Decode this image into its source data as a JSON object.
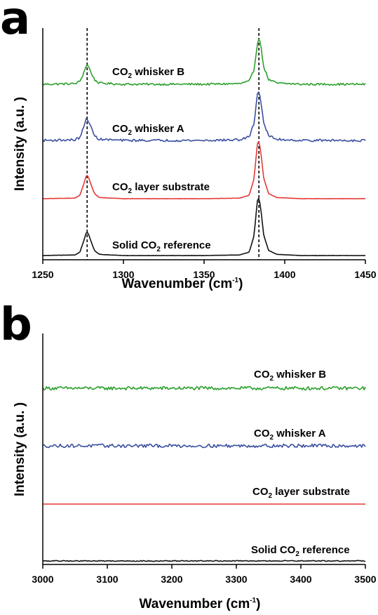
{
  "chart_data": [
    {
      "panel": "a",
      "type": "line",
      "xlabel": "Wavenumber (cm-1)",
      "ylabel": "Intensity (a.u. )",
      "xlim": [
        1250,
        1450
      ],
      "xticks": [
        1250,
        1300,
        1350,
        1400,
        1450
      ],
      "grid": false,
      "reference_lines_x": [
        1277.5,
        1384
      ],
      "series": [
        {
          "name": "CO2 whisker B",
          "color": "#2ca02c",
          "noise": 0.018,
          "x": [
            1250,
            1270,
            1273,
            1275,
            1277,
            1278,
            1280,
            1282,
            1285,
            1300,
            1350,
            1372,
            1378,
            1381,
            1383,
            1384,
            1385,
            1387,
            1390,
            1395,
            1410,
            1450
          ],
          "y": [
            0,
            0.01,
            0.05,
            0.17,
            0.33,
            0.33,
            0.2,
            0.08,
            0.02,
            0,
            0,
            0.01,
            0.05,
            0.25,
            0.7,
            0.82,
            0.7,
            0.3,
            0.08,
            0.02,
            0,
            0
          ]
        },
        {
          "name": "CO2 whisker A",
          "color": "#3a4fa0",
          "noise": 0.02,
          "x": [
            1250,
            1270,
            1273,
            1275,
            1277,
            1278,
            1280,
            1282,
            1285,
            1300,
            1350,
            1372,
            1378,
            1381,
            1383,
            1384,
            1385,
            1387,
            1390,
            1395,
            1410,
            1450
          ],
          "y": [
            0,
            0.01,
            0.05,
            0.2,
            0.37,
            0.37,
            0.22,
            0.08,
            0.02,
            0,
            0,
            0.01,
            0.06,
            0.3,
            0.8,
            0.86,
            0.72,
            0.3,
            0.08,
            0.02,
            0,
            0
          ]
        },
        {
          "name": "CO2 layer substrate",
          "color": "#e53935",
          "noise": 0.002,
          "x": [
            1250,
            1270,
            1273,
            1275,
            1277,
            1278,
            1280,
            1282,
            1285,
            1300,
            1350,
            1372,
            1378,
            1381,
            1383,
            1384,
            1385,
            1387,
            1390,
            1395,
            1410,
            1450
          ],
          "y": [
            0,
            0.01,
            0.06,
            0.22,
            0.4,
            0.4,
            0.24,
            0.09,
            0.02,
            0,
            0,
            0.01,
            0.06,
            0.35,
            0.95,
            1.0,
            0.85,
            0.35,
            0.09,
            0.02,
            0,
            0
          ]
        },
        {
          "name": "Solid CO2 reference",
          "color": "#111111",
          "noise": 0.002,
          "x": [
            1250,
            1270,
            1273,
            1275,
            1277,
            1278,
            1280,
            1282,
            1285,
            1300,
            1350,
            1372,
            1378,
            1381,
            1383,
            1384,
            1385,
            1387,
            1390,
            1395,
            1410,
            1450
          ],
          "y": [
            0,
            0.01,
            0.06,
            0.22,
            0.4,
            0.4,
            0.24,
            0.09,
            0.02,
            0,
            0,
            0.01,
            0.06,
            0.35,
            0.95,
            1.0,
            0.85,
            0.35,
            0.09,
            0.02,
            0,
            0
          ]
        }
      ]
    },
    {
      "panel": "b",
      "type": "line",
      "xlabel": "Wavenumber (cm-1)",
      "ylabel": "Intensity (a.u. )",
      "xlim": [
        3000,
        3500
      ],
      "xticks": [
        3000,
        3100,
        3200,
        3300,
        3400,
        3500
      ],
      "grid": false,
      "series": [
        {
          "name": "CO2 whisker B",
          "color": "#2ca02c",
          "noise": 0.03,
          "x": [
            3000,
            3500
          ],
          "y": [
            0,
            0
          ]
        },
        {
          "name": "CO2 whisker A",
          "color": "#3a4fa0",
          "noise": 0.03,
          "x": [
            3000,
            3500
          ],
          "y": [
            0,
            0
          ]
        },
        {
          "name": "CO2 layer substrate",
          "color": "#e53935",
          "noise": 0,
          "x": [
            3000,
            3500
          ],
          "y": [
            0,
            0
          ]
        },
        {
          "name": "Solid CO2 reference",
          "color": "#111111",
          "noise": 0.008,
          "x": [
            3000,
            3500
          ],
          "y": [
            0,
            0
          ]
        }
      ]
    }
  ],
  "labels": {
    "panel_a": "a",
    "panel_b": "b",
    "a_x_title": "Wavenumber (cm",
    "a_x_title_sup": "-1",
    "a_x_title_end": ")",
    "b_x_title": "Wavenumber (cm",
    "b_x_title_sup": "-1",
    "b_x_title_end": ")",
    "y_title": "Intensity (a.u. )",
    "series_prefix": "CO",
    "series_sub": "2",
    "whisker_b_suffix": " whisker B",
    "whisker_a_suffix": " whisker A",
    "layer_suffix": " layer substrate",
    "solid_prefix": "Solid CO",
    "solid_suffix": " reference"
  }
}
